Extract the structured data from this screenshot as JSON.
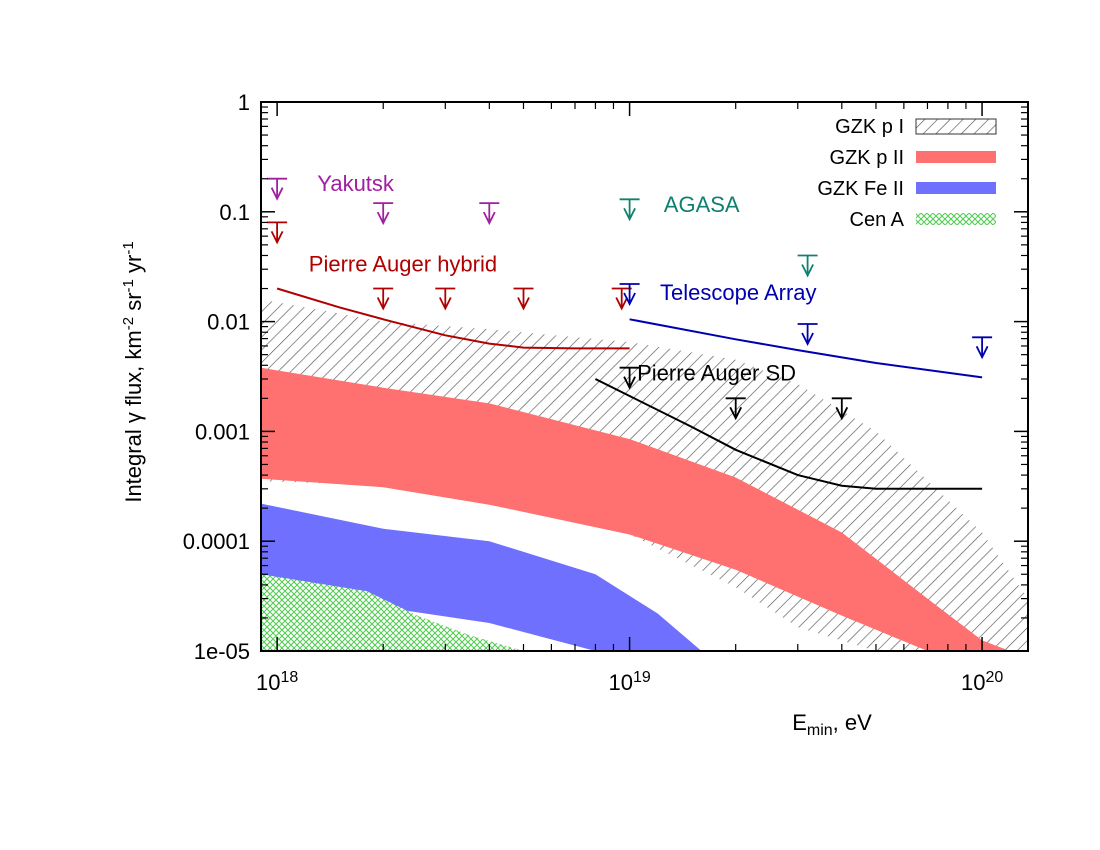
{
  "chart_data": {
    "type": "line",
    "title": "",
    "xlabel": {
      "base": "E",
      "sub": "min",
      "rest": ", eV"
    },
    "ylabel": {
      "parts": [
        {
          "t": "Integral ",
          "s": "n"
        },
        {
          "t": "γ",
          "s": "n"
        },
        {
          "t": " flux, km",
          "s": "n"
        },
        {
          "t": "-2",
          "s": "sup"
        },
        {
          "t": " sr",
          "s": "n"
        },
        {
          "t": "-1",
          "s": "sup"
        },
        {
          "t": " yr",
          "s": "n"
        },
        {
          "t": "-1",
          "s": "sup"
        }
      ]
    },
    "x_scale": "log",
    "y_scale": "log",
    "xlim": [
      9e+17,
      1.35e+20
    ],
    "ylim": [
      1e-05,
      1
    ],
    "x_ticks": [
      {
        "value": 1e+18,
        "base": "10",
        "exp": "18"
      },
      {
        "value": 1e+19,
        "base": "10",
        "exp": "19"
      },
      {
        "value": 1e+20,
        "base": "10",
        "exp": "20"
      }
    ],
    "y_ticks": [
      {
        "value": 1,
        "label": "1"
      },
      {
        "value": 0.1,
        "label": "0.1"
      },
      {
        "value": 0.01,
        "label": "0.01"
      },
      {
        "value": 0.001,
        "label": "0.001"
      },
      {
        "value": 0.0001,
        "label": "0.0001"
      },
      {
        "value": 1e-05,
        "label": "1e-05"
      }
    ],
    "bands": [
      {
        "name": "GZK p I",
        "fill": "hatch",
        "color": "#555555",
        "x": [
          9e+17,
          1e+18,
          2e+18,
          4e+18,
          1e+19,
          2e+19,
          3e+19,
          5e+19,
          1e+20,
          1.35e+20
        ],
        "upper": [
          0.016,
          0.015,
          0.01,
          0.0085,
          0.0065,
          0.0045,
          0.0027,
          0.001,
          0.00012,
          3e-05
        ],
        "lower": [
          0.00035,
          0.00035,
          0.00032,
          0.00026,
          0.000115,
          3.8e-05,
          1.65e-05,
          1e-05,
          1e-05,
          1e-05
        ]
      },
      {
        "name": "GZK p II",
        "fill": "solid",
        "color": "#ff7070",
        "x": [
          9e+17,
          2e+18,
          4e+18,
          1e+19,
          2e+19,
          4e+19,
          7e+19,
          1e+20,
          1.2e+20
        ],
        "upper": [
          0.0038,
          0.0025,
          0.0018,
          0.00085,
          0.00038,
          0.00012,
          3e-05,
          1.25e-05,
          1e-05
        ],
        "lower": [
          0.00037,
          0.00031,
          0.000215,
          0.000115,
          5.5e-05,
          2.1e-05,
          1e-05,
          1e-05,
          1e-05
        ]
      },
      {
        "name": "GZK Fe II",
        "fill": "solid",
        "color": "#7070ff",
        "x": [
          9e+17,
          2e+18,
          4e+18,
          8e+18,
          1.2e+19,
          1.6e+19
        ],
        "upper": [
          0.00022,
          0.00013,
          0.0001,
          5e-05,
          2.2e-05,
          1e-05
        ],
        "lower": [
          2.5e-05,
          2.5e-05,
          1.8e-05,
          1e-05,
          1e-05,
          1e-05
        ]
      },
      {
        "name": "Cen A",
        "fill": "crosshatch",
        "color": "#55cc55",
        "x": [
          9e+17,
          1.8e+18,
          2.5e+18,
          3.5e+18,
          5e+18
        ],
        "upper": [
          5e-05,
          3.5e-05,
          2.1e-05,
          1.4e-05,
          1e-05
        ],
        "lower": [
          1e-05,
          1e-05,
          1e-05,
          1e-05,
          1e-05
        ]
      }
    ],
    "lines": [
      {
        "name": "Pierre Auger hybrid",
        "color": "#b00000",
        "x": [
          1e+18,
          1.5e+18,
          2e+18,
          3e+18,
          4e+18,
          5e+18,
          7e+18,
          1e+19
        ],
        "y": [
          0.02,
          0.0135,
          0.0105,
          0.0075,
          0.0063,
          0.0058,
          0.0057,
          0.0057
        ]
      },
      {
        "name": "Telescope Array",
        "color": "#0000b0",
        "x": [
          1e+19,
          2e+19,
          3e+19,
          5e+19,
          1e+20
        ],
        "y": [
          0.0105,
          0.0069,
          0.0055,
          0.0042,
          0.0031
        ]
      },
      {
        "name": "Pierre Auger SD",
        "color": "#000000",
        "x": [
          8e+18,
          1e+19,
          1.5e+19,
          2e+19,
          3e+19,
          4e+19,
          5e+19,
          1e+20
        ],
        "y": [
          0.003,
          0.0021,
          0.0011,
          0.00068,
          0.0004,
          0.00032,
          0.0003,
          0.0003
        ]
      }
    ],
    "limits": [
      {
        "experiment": "Yakutsk",
        "color": "#a020a0",
        "points": [
          [
            1e+18,
            0.2
          ],
          [
            2e+18,
            0.12
          ],
          [
            4e+18,
            0.12
          ]
        ]
      },
      {
        "experiment": "Pierre Auger hybrid",
        "color": "#b00000",
        "points": [
          [
            1e+18,
            0.08
          ],
          [
            2e+18,
            0.02
          ],
          [
            3e+18,
            0.02
          ],
          [
            5e+18,
            0.02
          ],
          [
            9.5e+18,
            0.02
          ]
        ]
      },
      {
        "experiment": "AGASA",
        "color": "#108070",
        "points": [
          [
            1e+19,
            0.13
          ],
          [
            3.2e+19,
            0.04
          ]
        ]
      },
      {
        "experiment": "Telescope Array",
        "color": "#0000b0",
        "points": [
          [
            1e+19,
            0.022
          ],
          [
            3.2e+19,
            0.0095
          ],
          [
            1e+20,
            0.0072
          ]
        ]
      },
      {
        "experiment": "Pierre Auger SD",
        "color": "#000000",
        "points": [
          [
            1e+19,
            0.0038
          ],
          [
            2e+19,
            0.002
          ],
          [
            4e+19,
            0.002
          ]
        ]
      }
    ],
    "annotations": [
      {
        "text": "Yakutsk",
        "color": "#a020a0",
        "x": 1.3e+18,
        "y": 0.155
      },
      {
        "text": "AGASA",
        "color": "#108070",
        "x": 1.25e+19,
        "y": 0.1
      },
      {
        "text": "Pierre Auger hybrid",
        "color": "#b00000",
        "x": 1.23e+18,
        "y": 0.0285
      },
      {
        "text": "Telescope Array",
        "color": "#0000b0",
        "x": 1.22e+19,
        "y": 0.0158
      },
      {
        "text": "Pierre Auger SD",
        "color": "#000000",
        "x": 1.05e+19,
        "y": 0.0029
      }
    ],
    "legend": {
      "position": "top-right",
      "entries": [
        {
          "label": "GZK p I",
          "style": "hatch",
          "color": "#555555"
        },
        {
          "label": "GZK p II",
          "style": "solid",
          "color": "#ff7070"
        },
        {
          "label": "GZK Fe II",
          "style": "solid",
          "color": "#7070ff"
        },
        {
          "label": "Cen A",
          "style": "crosshatch",
          "color": "#55cc55"
        }
      ]
    }
  }
}
